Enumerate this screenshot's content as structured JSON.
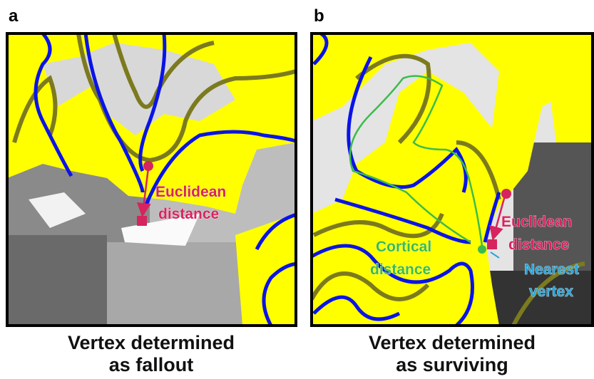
{
  "panels": [
    {
      "letter": "a",
      "caption": [
        "Vertex determined",
        "as fallout"
      ],
      "euclidean": [
        "Euclidean",
        "distance"
      ]
    },
    {
      "letter": "b",
      "caption": [
        "Vertex determined",
        "as surviving"
      ],
      "euclidean": [
        "Euclidean",
        "distance"
      ],
      "cortical": [
        "Cortical",
        "distance"
      ],
      "nearest": [
        "Nearest",
        "vertex"
      ]
    }
  ]
}
